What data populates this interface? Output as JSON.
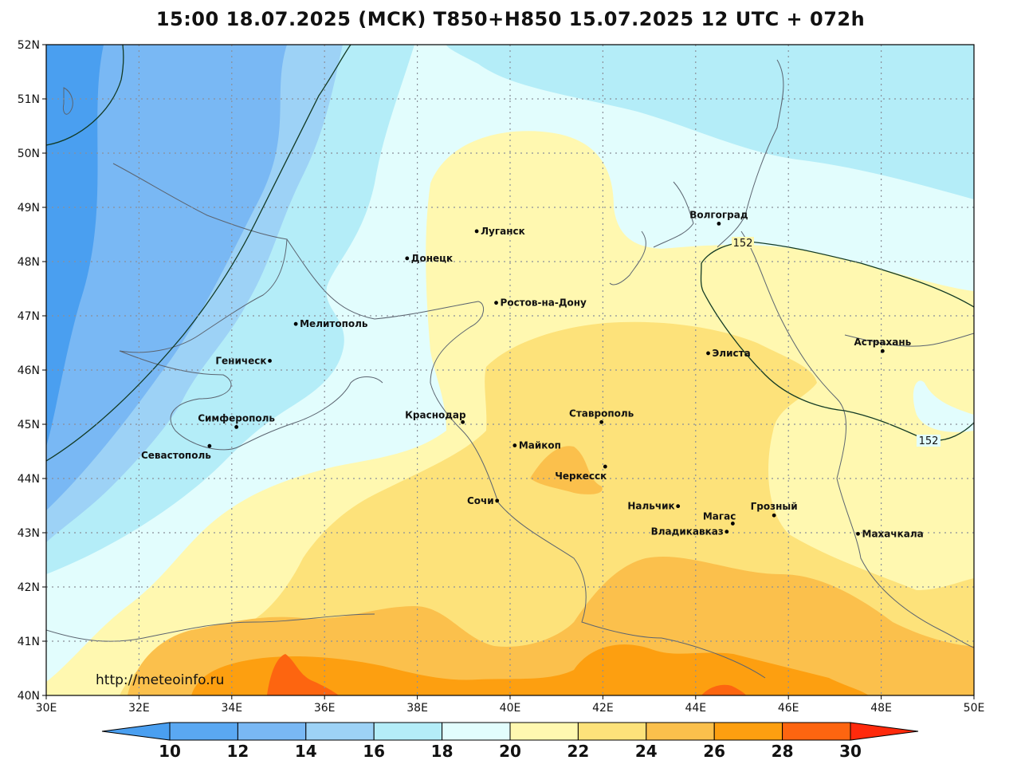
{
  "title": "15:00 18.07.2025 (МСК) T850+H850 15.07.2025 12 UTC + 072h",
  "map": {
    "lat_range": [
      40,
      52
    ],
    "lon_range": [
      30,
      50
    ],
    "lat_ticks": [
      {
        "lat": 52,
        "label": "52N"
      },
      {
        "lat": 51,
        "label": "51N"
      },
      {
        "lat": 50,
        "label": "50N"
      },
      {
        "lat": 49,
        "label": "49N"
      },
      {
        "lat": 48,
        "label": "48N"
      },
      {
        "lat": 47,
        "label": "47N"
      },
      {
        "lat": 46,
        "label": "46N"
      },
      {
        "lat": 45,
        "label": "45N"
      },
      {
        "lat": 44,
        "label": "44N"
      },
      {
        "lat": 43,
        "label": "43N"
      },
      {
        "lat": 42,
        "label": "42N"
      },
      {
        "lat": 41,
        "label": "41N"
      },
      {
        "lat": 40,
        "label": "40N"
      }
    ],
    "lon_ticks": [
      {
        "lon": 30,
        "label": "30E"
      },
      {
        "lon": 32,
        "label": "32E"
      },
      {
        "lon": 34,
        "label": "34E"
      },
      {
        "lon": 36,
        "label": "36E"
      },
      {
        "lon": 38,
        "label": "38E"
      },
      {
        "lon": 40,
        "label": "40E"
      },
      {
        "lon": 42,
        "label": "42E"
      },
      {
        "lon": 44,
        "label": "44E"
      },
      {
        "lon": 46,
        "label": "46E"
      },
      {
        "lon": 48,
        "label": "48E"
      },
      {
        "lon": 50,
        "label": "50E"
      }
    ],
    "cities": [
      {
        "name": "Луганск",
        "lon": 39.28,
        "lat": 48.56,
        "anchor": "right"
      },
      {
        "name": "Донецк",
        "lon": 37.78,
        "lat": 48.06,
        "anchor": "right"
      },
      {
        "name": "Ростов-на-Дону",
        "lon": 39.7,
        "lat": 47.24,
        "anchor": "right"
      },
      {
        "name": "Мелитополь",
        "lon": 35.38,
        "lat": 46.85,
        "anchor": "right"
      },
      {
        "name": "Геническ",
        "lon": 34.82,
        "lat": 46.17,
        "anchor": "left"
      },
      {
        "name": "Симферополь",
        "lon": 34.1,
        "lat": 44.95,
        "anchor": "above"
      },
      {
        "name": "Севастополь",
        "lon": 33.52,
        "lat": 44.6,
        "anchor": "below-left"
      },
      {
        "name": "Краснодар",
        "lon": 38.98,
        "lat": 45.04,
        "anchor": "above-left"
      },
      {
        "name": "Майкоп",
        "lon": 40.1,
        "lat": 44.61,
        "anchor": "right"
      },
      {
        "name": "Ставрополь",
        "lon": 41.97,
        "lat": 45.04,
        "anchor": "above"
      },
      {
        "name": "Черкесск",
        "lon": 42.05,
        "lat": 44.22,
        "anchor": "below-left"
      },
      {
        "name": "Сочи",
        "lon": 39.72,
        "lat": 43.59,
        "anchor": "left"
      },
      {
        "name": "Нальчик",
        "lon": 43.62,
        "lat": 43.49,
        "anchor": "left"
      },
      {
        "name": "Магас",
        "lon": 44.8,
        "lat": 43.17,
        "anchor": "above-left"
      },
      {
        "name": "Владикавказ",
        "lon": 44.67,
        "lat": 43.02,
        "anchor": "left"
      },
      {
        "name": "Грозный",
        "lon": 45.69,
        "lat": 43.32,
        "anchor": "above"
      },
      {
        "name": "Махачкала",
        "lon": 47.5,
        "lat": 42.98,
        "anchor": "right"
      },
      {
        "name": "Элиста",
        "lon": 44.27,
        "lat": 46.31,
        "anchor": "right"
      },
      {
        "name": "Астрахань",
        "lon": 48.03,
        "lat": 46.35,
        "anchor": "above"
      },
      {
        "name": "Волгоград",
        "lon": 44.5,
        "lat": 48.7,
        "anchor": "above"
      }
    ],
    "isoline_labels": [
      "152",
      "152"
    ],
    "watermark": "http://meteoinfo.ru"
  },
  "colorbar": {
    "labels": [
      "10",
      "12",
      "14",
      "16",
      "18",
      "20",
      "22",
      "24",
      "26",
      "28",
      "30"
    ],
    "colors": [
      "#4a9ff0",
      "#5aa8f2",
      "#79b8f4",
      "#9dd2f6",
      "#b4edf8",
      "#e2fdfd",
      "#fff8b0",
      "#fde27a",
      "#fbc04c",
      "#fd9f10",
      "#fd6510",
      "#ff2a0c"
    ]
  },
  "colors": {
    "t10": "#4a9ff0",
    "t12": "#5aa8f2",
    "t14": "#79b8f4",
    "t16": "#9dd2f6",
    "t18": "#b4edf8",
    "t20": "#e2fdfd",
    "t22": "#fff8b0",
    "t24": "#fde27a",
    "t26": "#fbc04c",
    "t28": "#fd9f10",
    "t30": "#fd6510"
  }
}
